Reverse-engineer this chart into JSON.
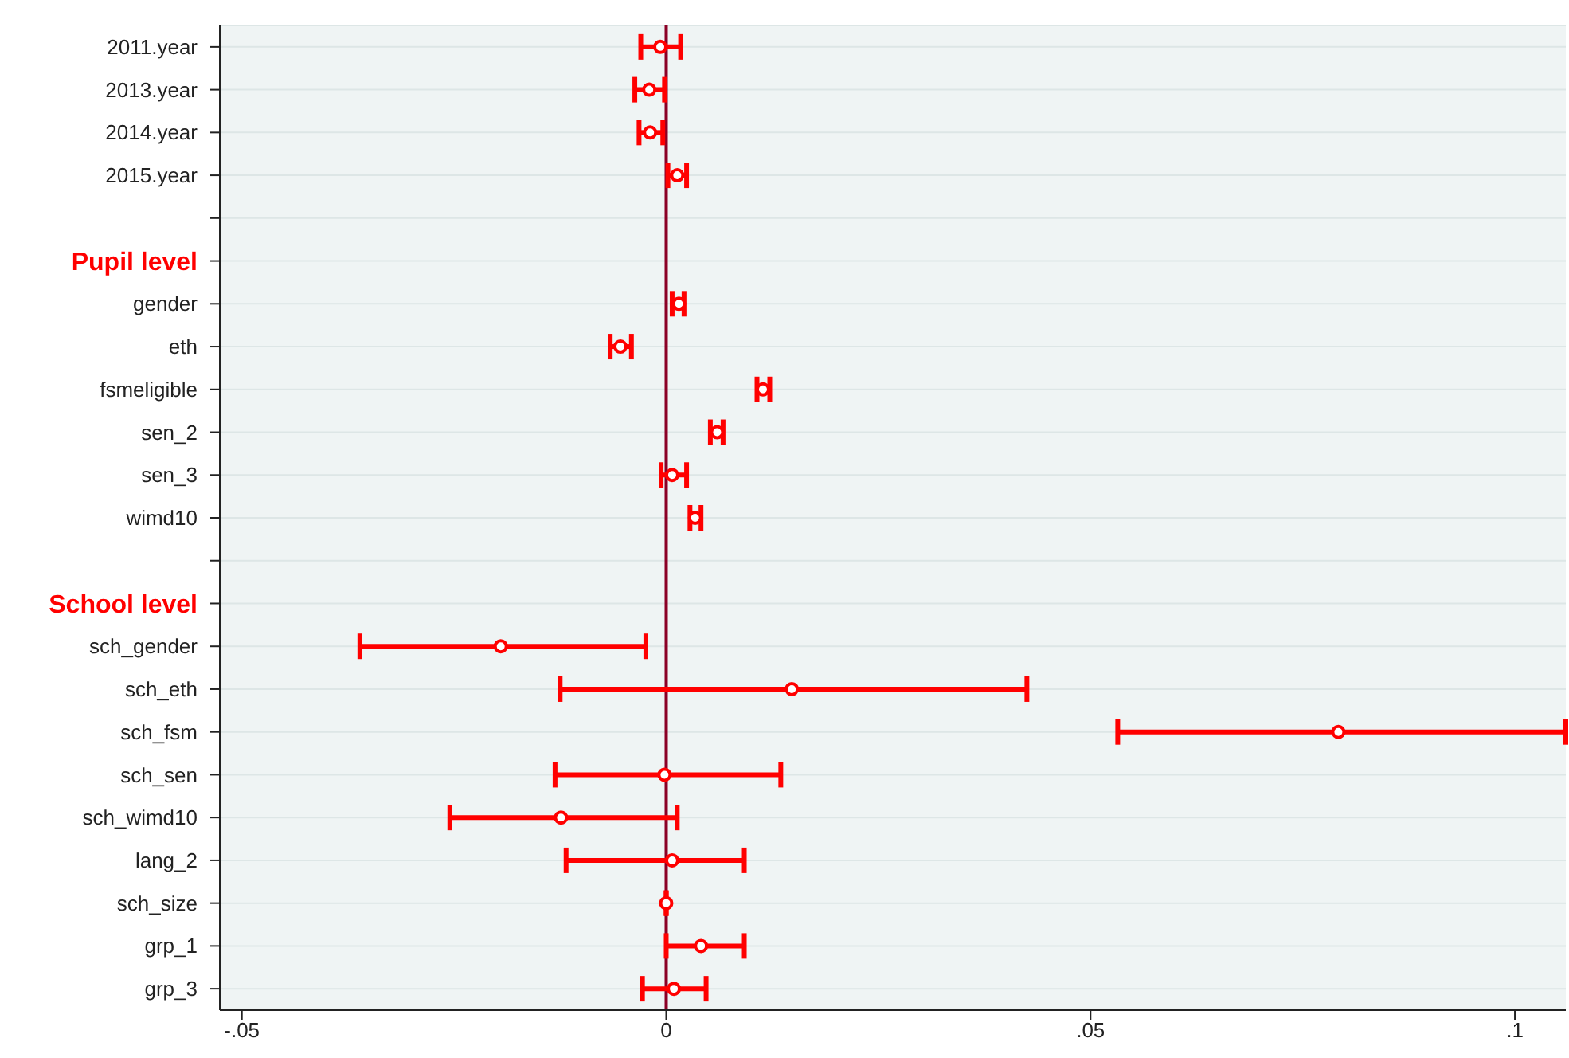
{
  "chart_data": {
    "type": "scatter",
    "orientation": "horizontal",
    "categories": [
      "2011.year",
      "2013.year",
      "2014.year",
      "2015.year",
      null,
      "Pupil level",
      "gender",
      "eth",
      "fsmeligible",
      "sen_2",
      "sen_3",
      "wimd10",
      null,
      "School level",
      "sch_gender",
      "sch_eth",
      "sch_fsm",
      "sch_sen",
      "sch_wimd10",
      "lang_2",
      "sch_size",
      "grp_1",
      "grp_3"
    ],
    "series": [
      {
        "color": "#ff0000",
        "values": [
          -0.0007,
          -0.002,
          -0.0019,
          0.0013,
          null,
          null,
          0.0015,
          -0.0054,
          0.0114,
          0.006,
          0.0007,
          0.0034,
          null,
          null,
          -0.0195,
          0.0148,
          0.0792,
          -0.0002,
          -0.0124,
          0.0007,
          0,
          0.0041,
          0.0009
        ],
        "errors": [
          [
            -0.003,
            0.0017
          ],
          [
            -0.0037,
            -0.0002
          ],
          [
            -0.0032,
            -0.0004
          ],
          [
            0.0002,
            0.0024
          ],
          null,
          null,
          [
            0.0007,
            0.0021
          ],
          [
            -0.0066,
            -0.0041
          ],
          [
            0.0107,
            0.0122
          ],
          [
            0.0052,
            0.0067
          ],
          [
            -0.0006,
            0.0024
          ],
          [
            0.0028,
            0.0041
          ],
          null,
          null,
          [
            -0.0361,
            -0.0024
          ],
          [
            -0.0125,
            0.0425
          ],
          [
            0.0532,
            0.106
          ],
          [
            -0.0131,
            0.0135
          ],
          [
            -0.0255,
            0.0013
          ],
          [
            -0.0118,
            0.0092
          ],
          null,
          [
            0,
            0.0092
          ],
          [
            -0.0028,
            0.0047
          ]
        ]
      }
    ],
    "xlim": [
      -0.0526,
      0.106
    ],
    "xticks": [
      {
        "value": -0.05,
        "label": "-.05"
      },
      {
        "value": 0,
        "label": "0"
      },
      {
        "value": 0.05,
        "label": ".05"
      },
      {
        "value": 0.1,
        "label": ".1"
      }
    ],
    "ref_lines": [
      {
        "axis": "x",
        "value": 0,
        "color": "#8b0026"
      }
    ],
    "grid": "y",
    "marker": "circle",
    "legend": false
  }
}
